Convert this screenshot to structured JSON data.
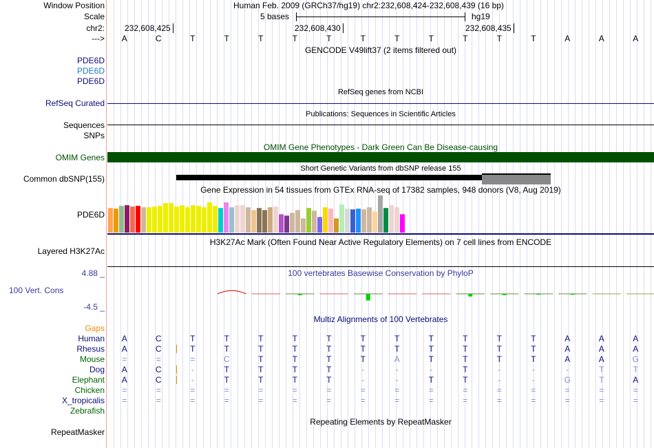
{
  "header": {
    "window_position_label": "Window Position",
    "position_text": "Human Feb. 2009 (GRCh37/hg19)   chr2:232,608,424-232,608,439 (16 bp)",
    "scale_label": "Scale",
    "scale_text": "5 bases",
    "assembly": "hg19",
    "chr_label": "chr2:",
    "ticks": [
      "232,608,425",
      "232,608,430",
      "232,608,435"
    ],
    "strand_label": "--->"
  },
  "bases": [
    "A",
    "C",
    "T",
    "T",
    "T",
    "T",
    "T",
    "T",
    "T",
    "T",
    "T",
    "T",
    "T",
    "A",
    "A",
    "A"
  ],
  "gencode": {
    "title": "GENCODE V49lift37 (2 items filtered out)",
    "genes": [
      {
        "name": "PDE6D",
        "color": "#0c0c78"
      },
      {
        "name": "PDE6D",
        "color": "#1e78c8"
      },
      {
        "name": "PDE6D",
        "color": "#0c0c78"
      }
    ]
  },
  "refseq": {
    "title": "RefSeq genes from NCBI",
    "label": "RefSeq Curated"
  },
  "pubs": {
    "title": "Publications: Sequences in Scientific Articles",
    "label": "Sequences"
  },
  "snps": {
    "label": "SNPs"
  },
  "omim": {
    "title": "OMIM Gene Phenotypes - Dark Green Can Be Disease-causing",
    "label": "OMIM Genes",
    "color": "#005000"
  },
  "dbsnp": {
    "title": "Short Genetic Variants from dbSNP release 155",
    "label": "Common dbSNP(155)"
  },
  "gtex": {
    "title": "Gene Expression in 54 tissues from GTEx RNA-seq of 17382 samples, 948 donors (V8, Aug 2019)",
    "label": "PDE6D",
    "colors": [
      "#FFA54F",
      "#EE9A00",
      "#8FBC8F",
      "#8B1C62",
      "#EE6A50",
      "#FF0000",
      "#CDB79E",
      "#EEEE00",
      "#EEEE00",
      "#EEEE00",
      "#EEEE00",
      "#EEEE00",
      "#EEEE00",
      "#EEEE00",
      "#EEEE00",
      "#EEEE00",
      "#EEEE00",
      "#EEEE00",
      "#EEEE00",
      "#EEEE00",
      "#00CDCD",
      "#EE82EE",
      "#9AC0CD",
      "#EED5D2",
      "#EED5D2",
      "#CDB79E",
      "#EEC591",
      "#8B7355",
      "#8B7355",
      "#CDAA7D",
      "#EED5D2",
      "#B452CD",
      "#7A378B",
      "#CDB79E",
      "#CDB79E",
      "#CDB79E",
      "#9ACD32",
      "#CDB79E",
      "#7A67EE",
      "#FFD700",
      "#FFB6C1",
      "#CD9B1D",
      "#B4EEB4",
      "#D9D9D9",
      "#3A5FCD",
      "#1E90FF",
      "#CDB79E",
      "#CDB79E",
      "#FFD39B",
      "#A6A6A6",
      "#008B45",
      "#EED5D2",
      "#EED5D2",
      "#FF00FF"
    ],
    "values": [
      106,
      103,
      115,
      118,
      112,
      115,
      109,
      109,
      112,
      115,
      127,
      127,
      112,
      118,
      109,
      118,
      115,
      109,
      130,
      115,
      106,
      130,
      109,
      118,
      118,
      109,
      97,
      106,
      97,
      109,
      112,
      79,
      73,
      85,
      97,
      61,
      106,
      94,
      67,
      109,
      103,
      61,
      121,
      103,
      100,
      103,
      100,
      109,
      91,
      160,
      106,
      118,
      109,
      79
    ]
  },
  "h3k27ac": {
    "title": "H3K27Ac Mark (Often Found Near Active Regulatory Elements) on 7 cell lines from ENCODE",
    "label": "Layered H3K27Ac"
  },
  "phylop": {
    "title": "100 vertebrates Basewise Conservation by PhyloP",
    "label": "100 Vert. Cons",
    "max": "4.88 _",
    "min": "-4.5 _",
    "values": [
      0.6,
      0.05,
      -0.3,
      0.02,
      -1.5,
      0.01,
      0.02,
      -0.6,
      -0.3,
      -0.2,
      -0.2,
      0,
      0,
      -0.3,
      0.1,
      0.1
    ]
  },
  "multiz": {
    "title": "Multiz Alignments of 100 Vertebrates",
    "gaps_label": "Gaps",
    "species": [
      {
        "name": "Human",
        "color": "#0c0c78",
        "seq": "ACTTTTTTTTTTTAAA",
        "faint": "",
        "ins": false
      },
      {
        "name": "Rhesus",
        "color": "#0c0c78",
        "seq": "ACTTTTTTTTTTTAAA",
        "faint": "",
        "ins": true
      },
      {
        "name": "Mouse",
        "color": "#006400",
        "seq": "===CTTTTATTTTAAG",
        "faint": "0001000010000001",
        "ins": false
      },
      {
        "name": "Dog",
        "color": "#0c0c78",
        "seq": "AC-TTTT---T---TT",
        "faint": "0000000000000011",
        "ins": true
      },
      {
        "name": "Elephant",
        "color": "#006400",
        "seq": "AC-TTTT--TT--GTA",
        "faint": "0000000000000110",
        "ins": true
      },
      {
        "name": "Chicken",
        "color": "#006400",
        "seq": "================",
        "faint": "",
        "ins": false
      },
      {
        "name": "X_tropicalis",
        "color": "#0c0c78",
        "seq": "================",
        "faint": "",
        "ins": false
      },
      {
        "name": "Zebrafish",
        "color": "#006400",
        "seq": "",
        "faint": "",
        "ins": false
      }
    ]
  },
  "repeatmasker": {
    "title": "Repeating Elements by RepeatMasker",
    "label": "RepeatMasker"
  }
}
